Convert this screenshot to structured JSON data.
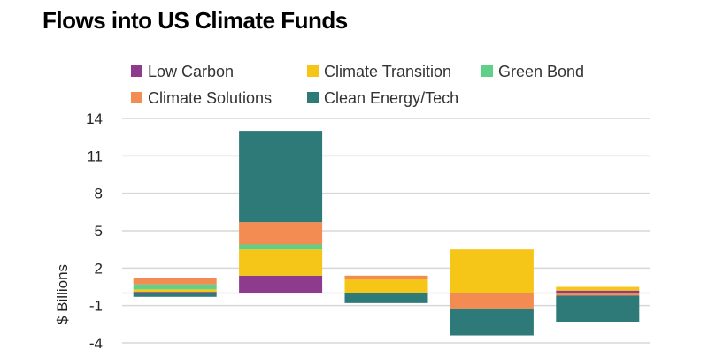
{
  "chart_data": {
    "type": "bar",
    "stacked": true,
    "title": "Flows into US Climate Funds",
    "ylabel": "$ Billions",
    "xlabel": "",
    "ylim": [
      -4,
      14
    ],
    "yticks": [
      14,
      11,
      8,
      5,
      2,
      -1,
      -4
    ],
    "grid": true,
    "legend_position": "top",
    "series": [
      {
        "name": "Low Carbon",
        "color": "#8e3b8e",
        "values": [
          0.1,
          1.4,
          0.0,
          0.0,
          0.2
        ]
      },
      {
        "name": "Climate Transition",
        "color": "#f5c518",
        "values": [
          0.2,
          2.1,
          1.1,
          3.5,
          0.3
        ]
      },
      {
        "name": "Green Bond",
        "color": "#5fd087",
        "values": [
          0.4,
          0.4,
          0.0,
          0.0,
          0.0
        ]
      },
      {
        "name": "Climate Solutions",
        "color": "#f28c52",
        "values": [
          0.5,
          1.8,
          0.3,
          -1.3,
          -0.2
        ]
      },
      {
        "name": "Clean Energy/Tech",
        "color": "#2e7a78",
        "values": [
          -0.3,
          7.3,
          -0.8,
          -2.1,
          -2.1
        ]
      }
    ],
    "categories": [
      "",
      "",
      "",
      "",
      ""
    ]
  }
}
